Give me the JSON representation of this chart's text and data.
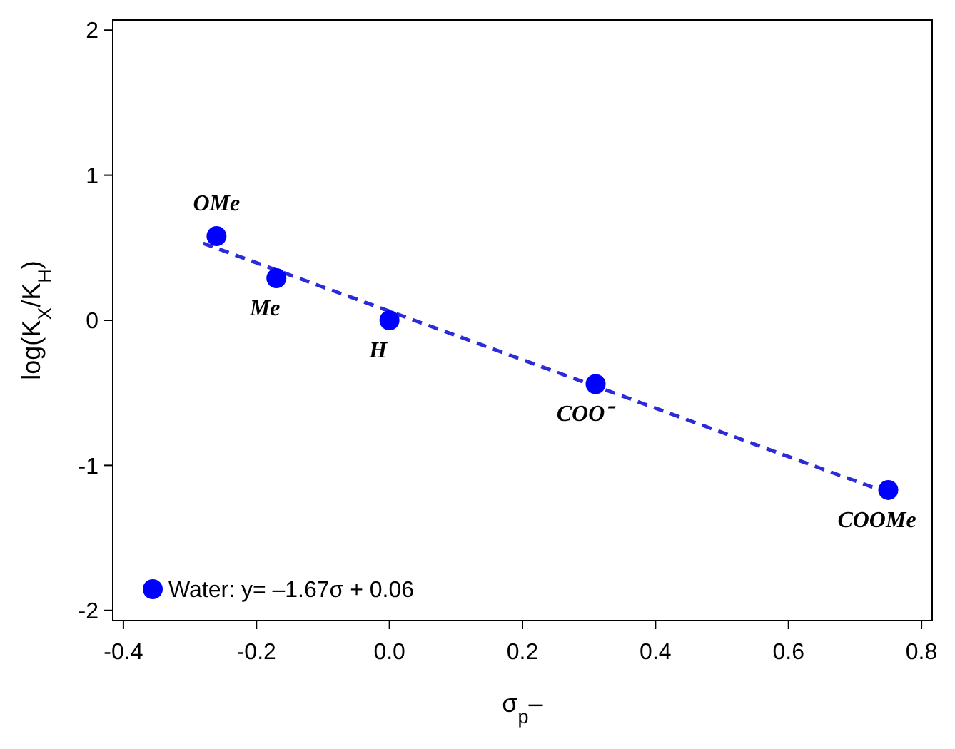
{
  "chart_data": {
    "type": "scatter",
    "xlabel": "σ$_{p}$–",
    "ylabel": "log(K$_{X}$/K$_{H}$)",
    "xlim": [
      -0.416,
      0.816
    ],
    "xticks": [
      -0.4,
      {
        "value": -0.2,
        "label": "-0.2"
      },
      {
        "value": 0,
        "label": "0.0"
      },
      0.2,
      0.4,
      0.6,
      0.8
    ],
    "ylim": [
      -2.07,
      2.07
    ],
    "yticks": [
      -2,
      -1,
      0,
      1,
      2
    ],
    "grid": false,
    "legend": "bottom left",
    "marker": "circle",
    "series": [
      {
        "name": "Water: y= –1.67σ + 0.06",
        "color": "#0000ff",
        "x": [
          -0.26,
          -0.17,
          0,
          0.31,
          0.75
        ],
        "values": [
          0.58,
          0.29,
          0,
          -0.44,
          -1.17
        ]
      },
      {
        "type": "line",
        "color": "#2b2bd9",
        "line_style": "dashed",
        "marker": "none",
        "x": [
          -0.28,
          0.75
        ],
        "values": [
          0.53,
          -1.19
        ]
      }
    ],
    "annotations": [
      {
        "text": "OMe",
        "x": -0.26,
        "y": 0.58
      },
      {
        "text": "Me",
        "x": -0.17,
        "y": 0.29
      },
      {
        "text": "H",
        "x": 0,
        "y": 0
      },
      {
        "text": "COO⁻",
        "x": 0.31,
        "y": -0.44
      },
      {
        "text": "COOMe",
        "x": 0.75,
        "y": -1.17
      }
    ]
  }
}
